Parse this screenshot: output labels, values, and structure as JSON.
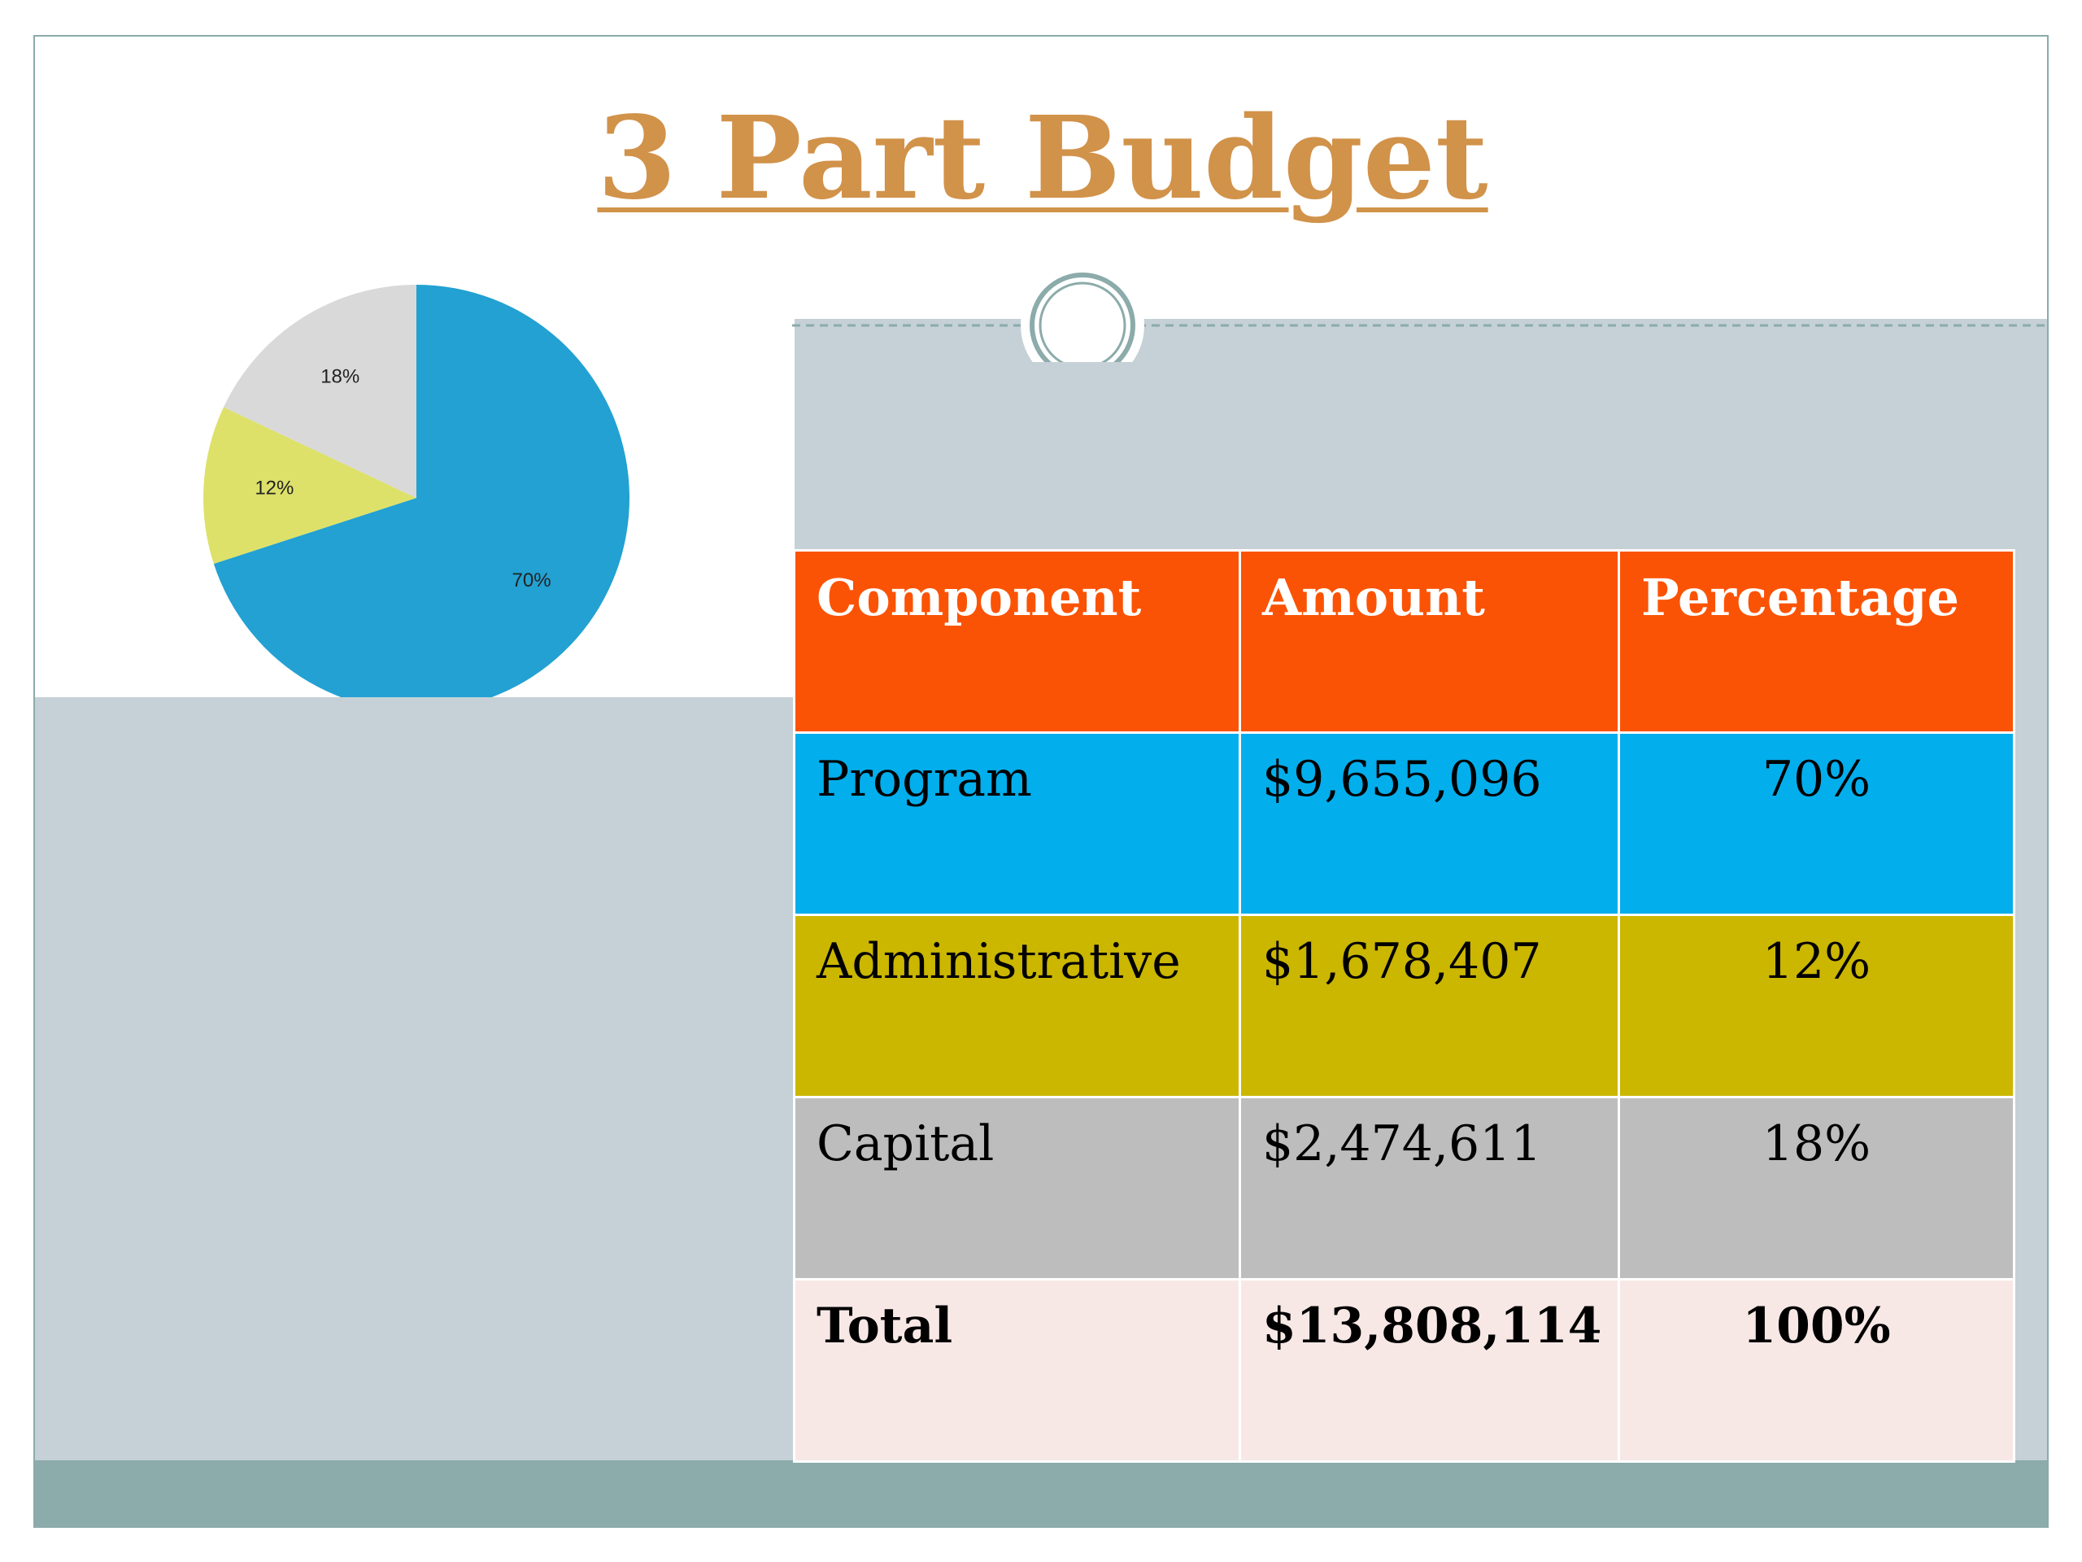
{
  "slide": {
    "title": "3 Part Budget"
  },
  "table": {
    "headers": [
      "Component",
      "Amount",
      "Percentage"
    ],
    "rows": [
      {
        "component": "Program",
        "amount": "$9,655,096",
        "percentage": "70%"
      },
      {
        "component": "Administrative",
        "amount": "$1,678,407",
        "percentage": "12%"
      },
      {
        "component": "Capital",
        "amount": "$2,474,611",
        "percentage": "18%"
      }
    ],
    "total": {
      "component": "Total",
      "amount": "$13,808,114",
      "percentage": "100%"
    }
  },
  "colors": {
    "title": "#d1924a",
    "header_row": "#fb5305",
    "program_row": "#03aeec",
    "administrative_row": "#cbb600",
    "capital_row": "#bdbdbd",
    "total_row": "#f7e8e6",
    "band": "#c5d1d6",
    "footer": "#8cabab"
  },
  "chart_data": {
    "type": "pie",
    "title": "",
    "slices": [
      {
        "label": "70%",
        "value": 70,
        "color": "#22a1d2"
      },
      {
        "label": "12%",
        "value": 12,
        "color": "#dde16a"
      },
      {
        "label": "18%",
        "value": 18,
        "color": "#d9d9d9"
      }
    ]
  }
}
